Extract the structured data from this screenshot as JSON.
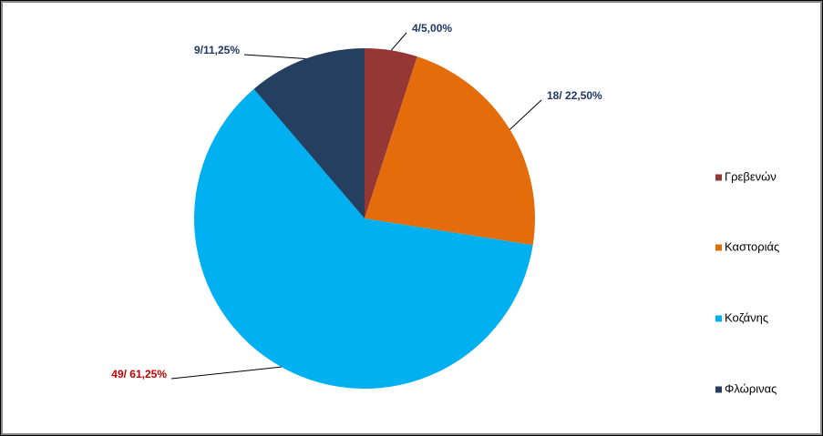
{
  "chart_data": {
    "type": "pie",
    "categories": [
      "Γρεβενών",
      "Καστοριάς",
      "Κοζάνης",
      "Φλώρινας"
    ],
    "values": [
      4,
      18,
      49,
      9
    ],
    "value_labels": [
      "4/5,00%",
      "18/ 22,50%",
      "49/ 61,25%",
      "9/11,25%"
    ],
    "colors": [
      "#953735",
      "#e46c0a",
      "#00b0f0",
      "#243f60"
    ],
    "value_label_colors": [
      "#1f3864",
      "#1f3864",
      "#c00000",
      "#1f3864"
    ],
    "legend": "right"
  }
}
